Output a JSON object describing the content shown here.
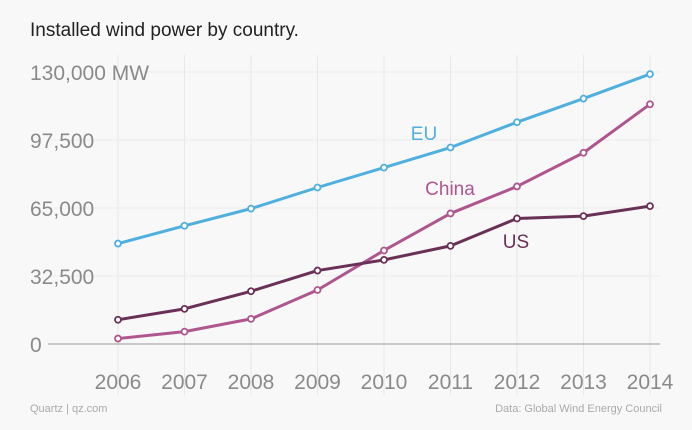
{
  "title": "Installed wind power by country.",
  "footer": {
    "source_left": "Quartz | qz.com",
    "source_right": "Data: Global Wind Energy Council"
  },
  "chart_data": {
    "type": "line",
    "title": "Installed wind power by country.",
    "xlabel": "",
    "ylabel": "MW",
    "x": [
      2006,
      2007,
      2008,
      2009,
      2010,
      2011,
      2012,
      2013,
      2014
    ],
    "x_tick_labels": [
      "2006",
      "2007",
      "2008",
      "2009",
      "2010",
      "2011",
      "2012",
      "2013",
      "2014"
    ],
    "ylim": [
      0,
      130000
    ],
    "y_ticks": [
      0,
      32500,
      65000,
      97500,
      130000
    ],
    "y_tick_labels": [
      "0",
      "32,500",
      "65,000",
      "97,500",
      "130,000 MW"
    ],
    "grid": true,
    "series": [
      {
        "name": "EU",
        "color": "#4fb0e0",
        "values": [
          48000,
          56500,
          64700,
          74800,
          84300,
          93900,
          106000,
          117300,
          129000
        ]
      },
      {
        "name": "China",
        "color": "#b0568e",
        "values": [
          2600,
          5900,
          12000,
          25800,
          44700,
          62400,
          75300,
          91400,
          114600
        ]
      },
      {
        "name": "US",
        "color": "#6a3157",
        "values": [
          11600,
          16800,
          25200,
          35100,
          40200,
          46900,
          60000,
          61100,
          65900
        ]
      }
    ]
  }
}
